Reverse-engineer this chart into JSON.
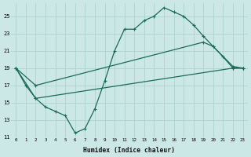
{
  "bg_color": "#cce8e6",
  "grid_color": "#aacfcc",
  "line_color": "#1a6b5a",
  "xlabel": "Humidex (Indice chaleur)",
  "xlim_min": -0.5,
  "xlim_max": 23.5,
  "ylim_min": 11,
  "ylim_max": 26.5,
  "yticks": [
    11,
    13,
    15,
    17,
    19,
    21,
    23,
    25
  ],
  "xticks": [
    0,
    1,
    2,
    3,
    4,
    5,
    6,
    7,
    8,
    9,
    10,
    11,
    12,
    13,
    14,
    15,
    16,
    17,
    18,
    19,
    20,
    21,
    22,
    23
  ],
  "curve1_x": [
    0,
    1,
    2,
    3,
    4,
    5,
    6,
    7,
    8,
    9,
    10,
    11,
    12,
    13,
    14,
    15,
    16,
    17,
    18,
    19,
    20,
    21,
    22,
    23
  ],
  "curve1_y": [
    19.0,
    17.0,
    15.5,
    14.5,
    14.0,
    13.5,
    11.5,
    12.0,
    14.3,
    17.5,
    21.0,
    23.5,
    23.5,
    24.5,
    25.0,
    26.0,
    25.5,
    25.0,
    24.0,
    22.7,
    21.5,
    20.3,
    19.0,
    19.0
  ],
  "curve2_x": [
    0,
    2,
    19,
    20,
    22,
    23
  ],
  "curve2_y": [
    19.0,
    17.0,
    22.0,
    21.5,
    19.2,
    19.0
  ],
  "curve3_x": [
    0,
    2,
    22,
    23
  ],
  "curve3_y": [
    19.0,
    15.5,
    19.0,
    19.0
  ]
}
